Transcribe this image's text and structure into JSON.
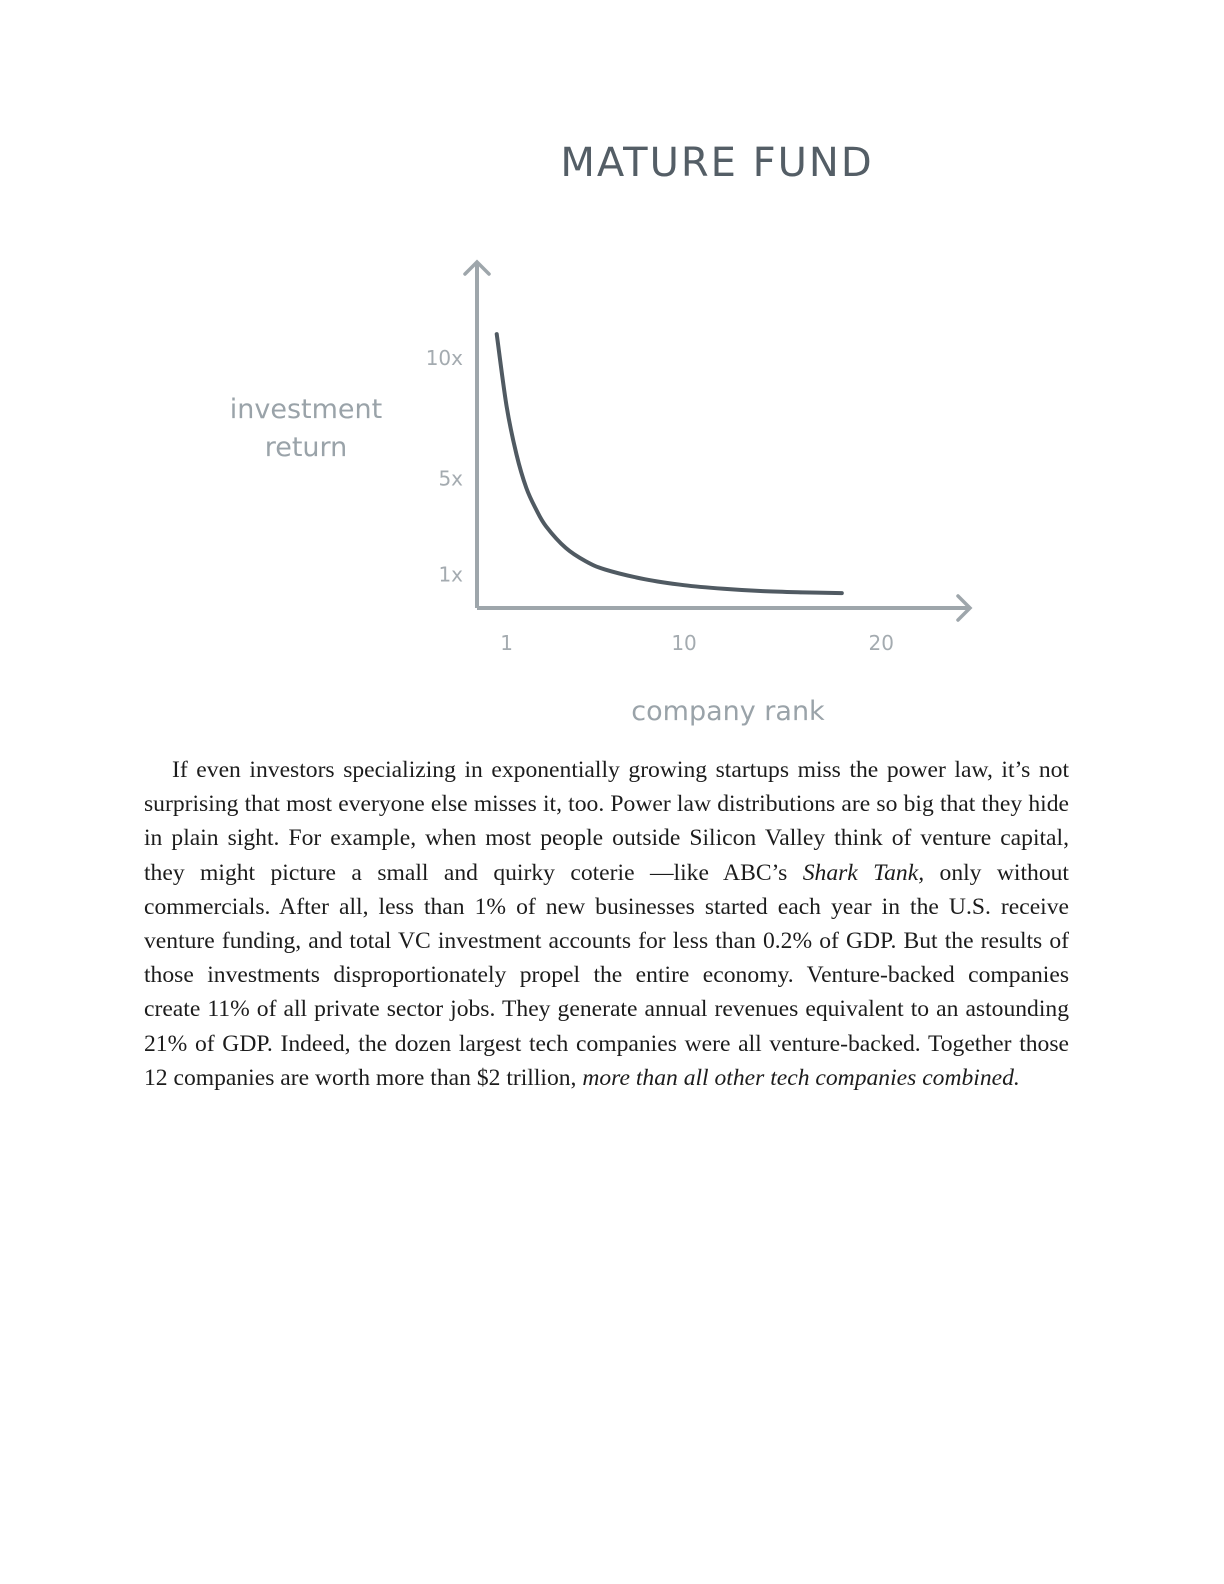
{
  "figure": {
    "chart_data": {
      "type": "line",
      "title": "MATURE FUND",
      "xlabel": "company rank",
      "ylabel_lines": [
        "investment",
        "return"
      ],
      "x_ticks": [
        {
          "value": 1,
          "label": "1"
        },
        {
          "value": 10,
          "label": "10"
        },
        {
          "value": 20,
          "label": "20"
        }
      ],
      "y_ticks": [
        {
          "value": 10,
          "label": "10x"
        },
        {
          "value": 5,
          "label": "5x"
        },
        {
          "value": 1,
          "label": "1x"
        }
      ],
      "xlim": [
        -0.5,
        24.5
      ],
      "ylim": [
        -0.4,
        14
      ],
      "series": [
        {
          "x": [
            0.5,
            1,
            1.5,
            2,
            2.5,
            3,
            4,
            5,
            6,
            8,
            10,
            12,
            14,
            16,
            18
          ],
          "values": [
            11.0,
            8.0,
            6.0,
            4.6,
            3.7,
            3.0,
            2.1,
            1.55,
            1.2,
            0.8,
            0.55,
            0.4,
            0.3,
            0.25,
            0.22
          ]
        }
      ],
      "grid": false,
      "colors": {
        "line": "#505a62",
        "axis": "#9ea6ab"
      }
    }
  },
  "text": {
    "p1_a": "If even investors specializing in exponentially growing startups miss the power law, it’s not surprising that most everyone else misses it, too. Power law distributions are so big that they hide in plain sight. For example, when most people outside Silicon Valley think of venture capital, they might picture a small and quirky coterie —like ABC’s ",
    "p1_italic_1": "Shark Tank,",
    "p1_b": " only without commercials. After all, less than 1% of new businesses started each year in the U.S. receive venture funding, and total VC investment accounts for less than 0.2% of GDP. But the results of those investments disproportionately propel the entire economy. Venture-backed companies create 11% of all private sector jobs. They generate annual revenues equivalent to an astounding 21% of GDP. Indeed, the dozen largest tech companies were all venture-backed. Together those 12 companies are worth more than $2 trillion, ",
    "p1_italic_2": "more than all other tech companies combined."
  }
}
